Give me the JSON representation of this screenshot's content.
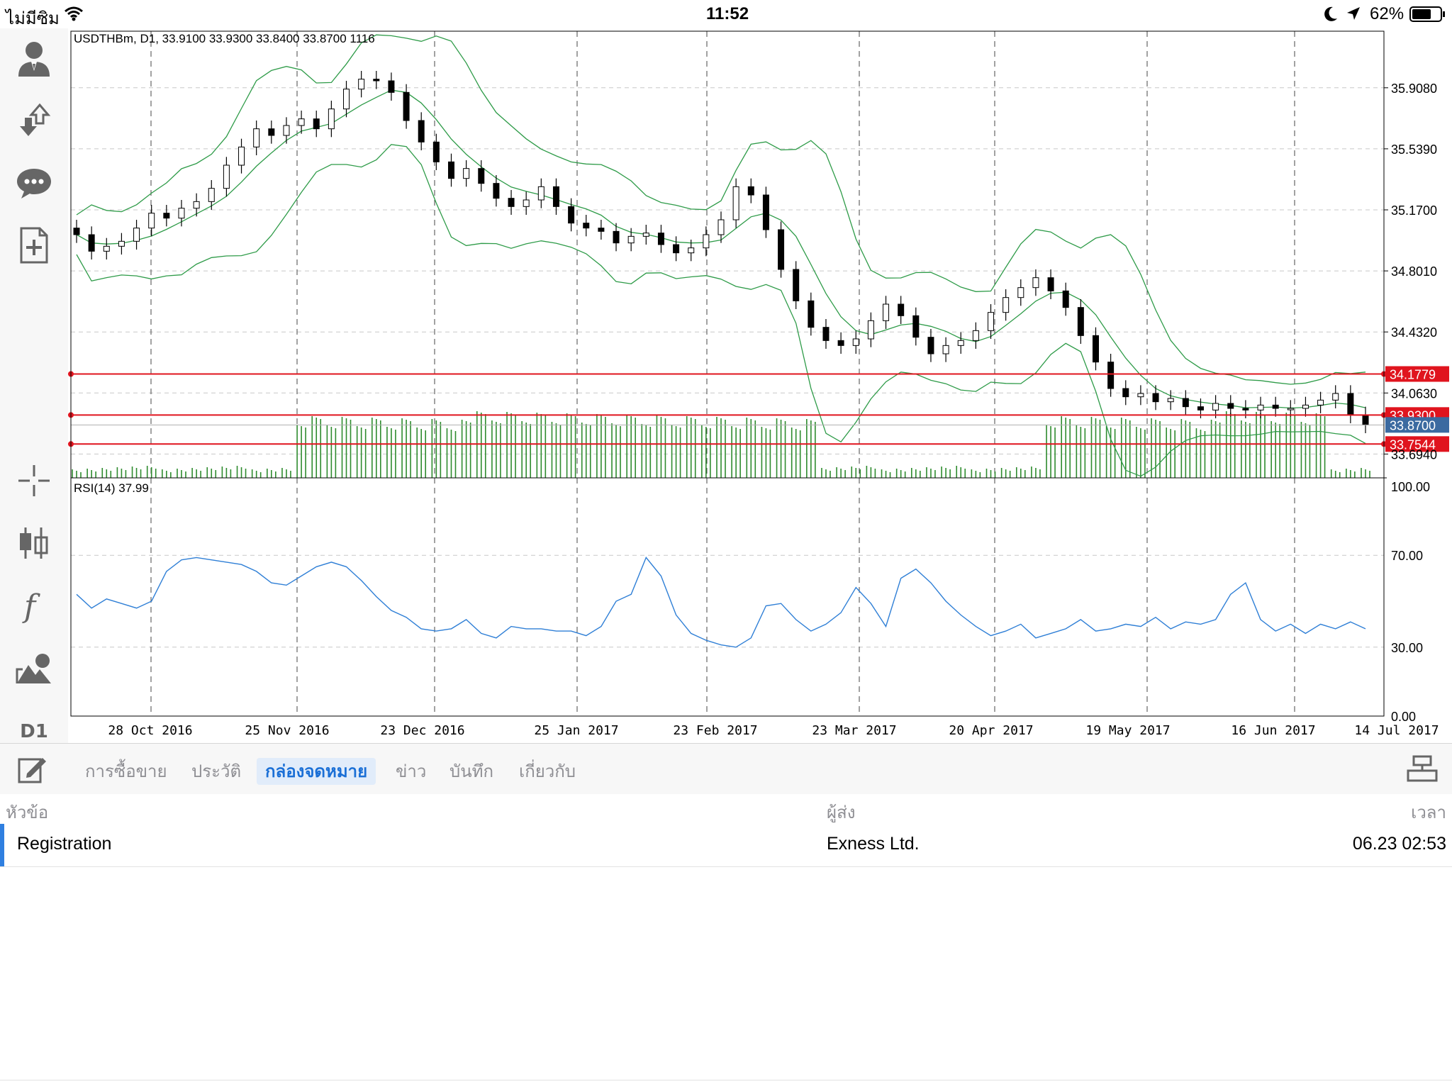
{
  "status_bar": {
    "carrier": "ไม่มีซิม",
    "time": "11:52",
    "battery": "62%"
  },
  "sidebar": {
    "items": [
      {
        "icon": "account-icon"
      },
      {
        "icon": "trade-icon"
      },
      {
        "icon": "chat-icon"
      },
      {
        "icon": "new-order-icon"
      },
      {
        "icon": "crosshair-icon"
      },
      {
        "icon": "chart-type-icon"
      },
      {
        "icon": "indicators-icon"
      },
      {
        "icon": "objects-icon"
      },
      {
        "label": "D1"
      }
    ]
  },
  "chart_header": "USDTHBm, D1, 33.9100 33.9300 33.8400 33.8700 1116",
  "rsi_header": "RSI(14) 37.99",
  "chart_data": {
    "type": "candlestick",
    "symbol": "USDTHBm",
    "timeframe": "D1",
    "ohlc_header": {
      "open": 33.91,
      "high": 33.93,
      "low": 33.84,
      "close": 33.87,
      "volume": 1116
    },
    "price_ticks": [
      "35.9080",
      "35.5390",
      "35.1700",
      "34.8010",
      "34.4320",
      "34.0630",
      "33.6940"
    ],
    "price_labels": [
      {
        "text": "34.1779",
        "type": "line",
        "color": "#e0141e"
      },
      {
        "text": "33.9300",
        "type": "line",
        "color": "#e0141e"
      },
      {
        "text": "33.8700",
        "type": "bid",
        "color": "#3b6aa0"
      },
      {
        "text": "33.7544",
        "type": "line",
        "color": "#e0141e"
      }
    ],
    "date_ticks": [
      "28 Oct 2016",
      "25 Nov 2016",
      "23 Dec 2016",
      "25 Jan 2017",
      "23 Feb 2017",
      "23 Mar 2017",
      "20 Apr 2017",
      "19 May 2017",
      "16 Jun 2017",
      "14 Jul 2017"
    ],
    "rsi_ticks": [
      "100.00",
      "70.00",
      "30.00",
      "0.00"
    ],
    "series": [
      {
        "name": "close",
        "values": [
          35.02,
          34.92,
          34.95,
          34.98,
          35.06,
          35.15,
          35.12,
          35.18,
          35.22,
          35.3,
          35.44,
          35.55,
          35.66,
          35.62,
          35.68,
          35.72,
          35.66,
          35.78,
          35.9,
          35.96,
          35.95,
          35.88,
          35.71,
          35.58,
          35.46,
          35.36,
          35.42,
          35.33,
          35.24,
          35.19,
          35.23,
          35.31,
          35.19,
          35.09,
          35.06,
          35.04,
          34.97,
          35.01,
          35.03,
          34.96,
          34.91,
          34.94,
          35.02,
          35.11,
          35.31,
          35.26,
          35.05,
          34.81,
          34.62,
          34.46,
          34.38,
          34.35,
          34.39,
          34.5,
          34.6,
          34.53,
          34.4,
          34.3,
          34.35,
          34.38,
          34.44,
          34.55,
          34.64,
          34.7,
          34.76,
          34.68,
          34.58,
          34.41,
          34.25,
          34.09,
          34.04,
          34.06,
          34.01,
          34.03,
          33.98,
          33.96,
          34.0,
          33.97,
          33.96,
          33.99,
          33.97,
          33.97,
          33.99,
          34.02,
          34.06,
          33.93,
          33.87
        ]
      },
      {
        "name": "RSI(14)",
        "values": [
          53,
          47,
          51,
          49,
          47,
          50,
          63,
          68,
          69,
          68,
          67,
          66,
          63,
          58,
          57,
          61,
          65,
          67,
          65,
          59,
          52,
          46,
          43,
          38,
          37,
          38,
          42,
          36,
          34,
          39,
          38,
          38,
          37,
          37,
          35,
          39,
          50,
          53,
          69,
          61,
          44,
          36,
          33,
          31,
          30,
          34,
          48,
          49,
          42,
          37,
          40,
          45,
          56,
          49,
          39,
          60,
          64,
          58,
          50,
          44,
          39,
          35,
          37,
          40,
          34,
          36,
          38,
          42,
          37,
          38,
          40,
          39,
          43,
          38,
          41,
          40,
          42,
          53,
          58,
          42,
          37,
          40,
          36,
          40,
          38,
          41,
          38
        ]
      }
    ]
  },
  "tabs": [
    {
      "label": "การซื้อขาย",
      "active": false
    },
    {
      "label": "ประวัติ",
      "active": false
    },
    {
      "label": "กล่องจดหมาย",
      "active": true
    },
    {
      "label": "ข่าว",
      "active": false
    },
    {
      "label": "บันทึก",
      "active": false
    },
    {
      "label": "เกี่ยวกับ",
      "active": false
    }
  ],
  "mailbox": {
    "columns": {
      "subject": "หัวข้อ",
      "sender": "ผู้ส่ง",
      "time": "เวลา"
    },
    "rows": [
      {
        "subject": "Registration",
        "sender": "Exness Ltd.",
        "time": "06.23 02:53"
      }
    ]
  }
}
